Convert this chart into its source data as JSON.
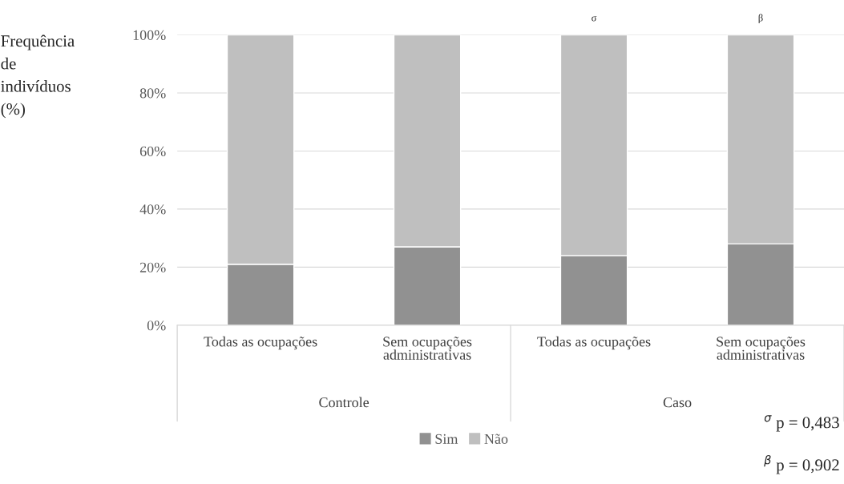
{
  "chart_data": {
    "type": "bar",
    "stacked": true,
    "ylabel": "Frequência\nde\nindivíduos\n(%)",
    "categories": [
      "Todas as ocupações",
      "Sem ocupações\nadministrativas",
      "Todas as ocupações",
      "Sem ocupações\nadministrativas"
    ],
    "series": [
      {
        "name": "Sim",
        "color": "#919191",
        "values": [
          21,
          27,
          24,
          28
        ]
      },
      {
        "name": "Não",
        "color": "#bfbfbf",
        "values": [
          79,
          73,
          76,
          72
        ]
      }
    ],
    "ylim": [
      0,
      100
    ],
    "yticks": [
      {
        "value": 0,
        "label": "0%"
      },
      {
        "value": 20,
        "label": "20%"
      },
      {
        "value": 40,
        "label": "40%"
      },
      {
        "value": 60,
        "label": "60%"
      },
      {
        "value": 80,
        "label": "80%"
      },
      {
        "value": 100,
        "label": "100%"
      }
    ],
    "grid": "y",
    "legend": "bottom",
    "annotations": [
      "Controle",
      "Caso",
      "σ",
      "β",
      "$^{σ}$ p = 0,483",
      "$^{β}$ p = 0,902"
    ]
  }
}
